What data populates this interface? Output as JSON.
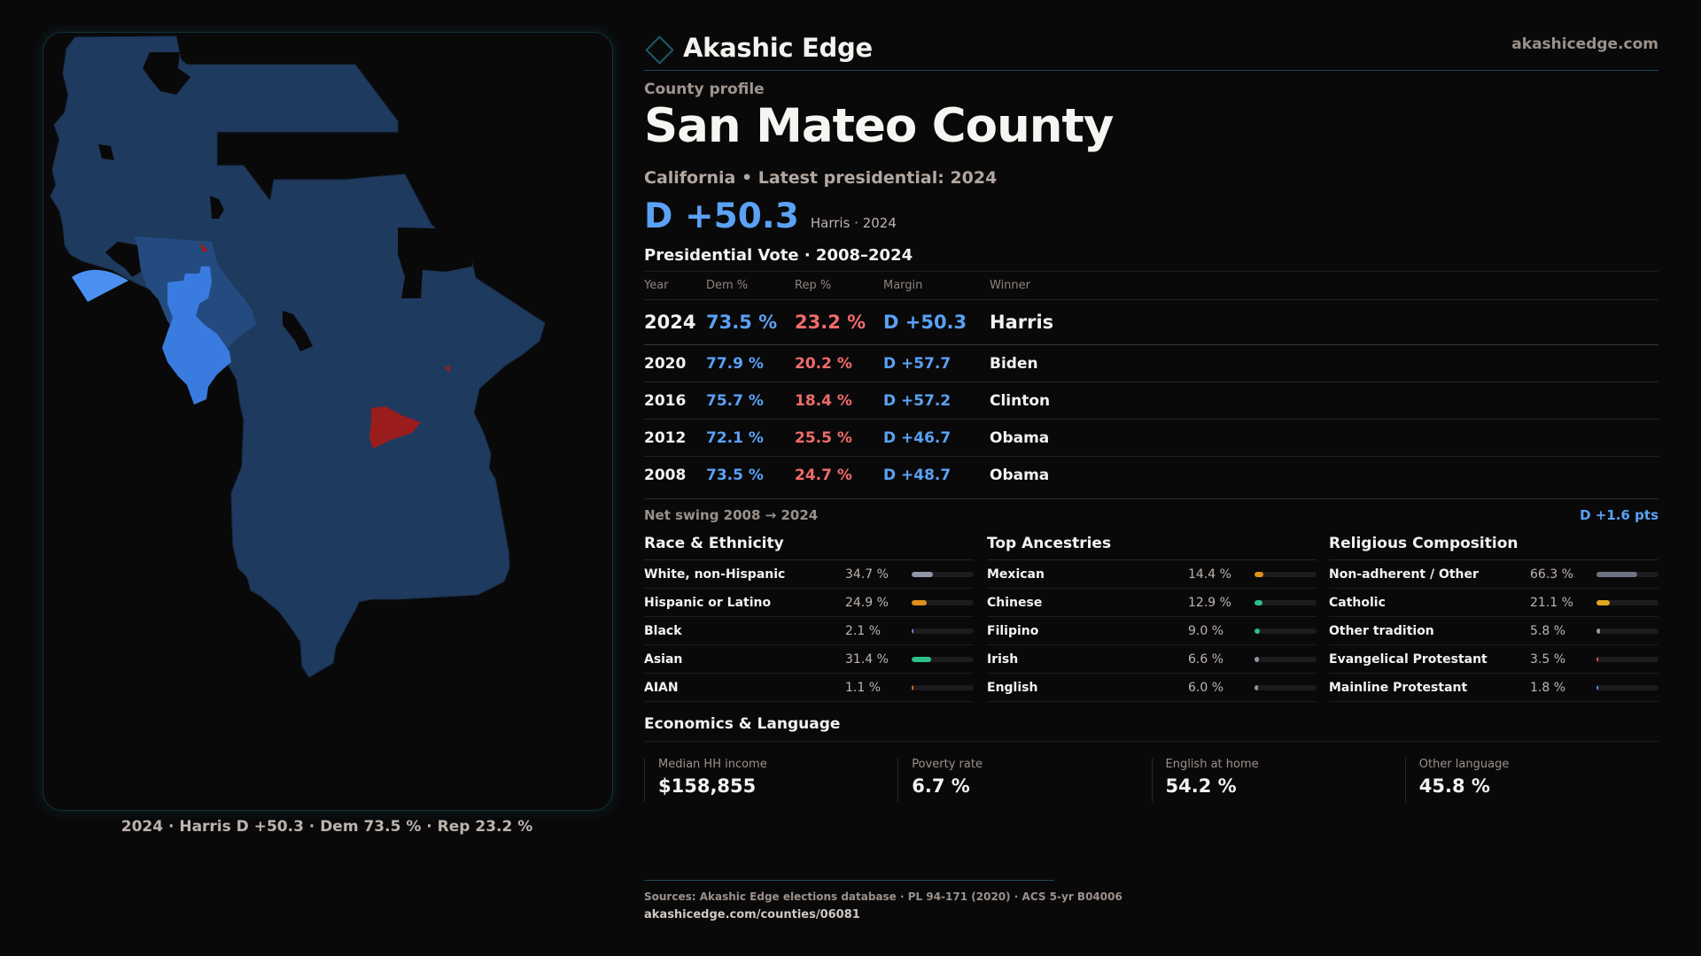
{
  "brand": {
    "name": "Akashic Edge",
    "site": "akashicedge.com",
    "logo_icon": "diamond-icon"
  },
  "profile": {
    "eyebrow": "County profile",
    "county": "San Mateo County",
    "subtitle": "California • Latest presidential: 2024",
    "headline_margin": "D +50.3",
    "headline_winner": "Harris · 2024"
  },
  "vote": {
    "title": "Presidential Vote · 2008–2024",
    "headers": {
      "year": "Year",
      "dem": "Dem %",
      "rep": "Rep %",
      "margin": "Margin",
      "winner": "Winner"
    },
    "rows": [
      {
        "year": "2024",
        "dem": "73.5 %",
        "rep": "23.2 %",
        "margin": "D +50.3",
        "winner": "Harris"
      },
      {
        "year": "2020",
        "dem": "77.9 %",
        "rep": "20.2 %",
        "margin": "D +57.7",
        "winner": "Biden"
      },
      {
        "year": "2016",
        "dem": "75.7 %",
        "rep": "18.4 %",
        "margin": "D +57.2",
        "winner": "Clinton"
      },
      {
        "year": "2012",
        "dem": "72.1 %",
        "rep": "25.5 %",
        "margin": "D +46.7",
        "winner": "Obama"
      },
      {
        "year": "2008",
        "dem": "73.5 %",
        "rep": "24.7 %",
        "margin": "D +48.7",
        "winner": "Obama"
      }
    ],
    "swing_label": "Net swing 2008 → 2024",
    "swing_value": "D +1.6 pts"
  },
  "demographics": [
    {
      "title": "Race & Ethnicity",
      "items": [
        {
          "label": "White, non-Hispanic",
          "value": "34.7 %",
          "pct": 34.7,
          "color": "#8e98a6"
        },
        {
          "label": "Hispanic or Latino",
          "value": "24.9 %",
          "pct": 24.9,
          "color": "#e0901a"
        },
        {
          "label": "Black",
          "value": "2.1 %",
          "pct": 2.1,
          "color": "#8a7ad6"
        },
        {
          "label": "Asian",
          "value": "31.4 %",
          "pct": 31.4,
          "color": "#2fbf8a"
        },
        {
          "label": "AIAN",
          "value": "1.1 %",
          "pct": 1.1,
          "color": "#d9782a"
        }
      ]
    },
    {
      "title": "Top Ancestries",
      "items": [
        {
          "label": "Mexican",
          "value": "14.4 %",
          "pct": 14.4,
          "color": "#e0901a"
        },
        {
          "label": "Chinese",
          "value": "12.9 %",
          "pct": 12.9,
          "color": "#2fbf8a"
        },
        {
          "label": "Filipino",
          "value": "9.0 %",
          "pct": 9.0,
          "color": "#2fbf8a"
        },
        {
          "label": "Irish",
          "value": "6.6 %",
          "pct": 6.6,
          "color": "#8e98a6"
        },
        {
          "label": "English",
          "value": "6.0 %",
          "pct": 6.0,
          "color": "#8e98a6"
        }
      ]
    },
    {
      "title": "Religious Composition",
      "items": [
        {
          "label": "Non-adherent / Other",
          "value": "66.3 %",
          "pct": 66.3,
          "color": "#6c7280"
        },
        {
          "label": "Catholic",
          "value": "21.1 %",
          "pct": 21.1,
          "color": "#e3a823"
        },
        {
          "label": "Other tradition",
          "value": "5.8 %",
          "pct": 5.8,
          "color": "#8e98a6"
        },
        {
          "label": "Evangelical Protestant",
          "value": "3.5 %",
          "pct": 3.5,
          "color": "#e05b5b"
        },
        {
          "label": "Mainline Protestant",
          "value": "1.8 %",
          "pct": 1.8,
          "color": "#4f8fe0"
        }
      ]
    }
  ],
  "economics": {
    "title": "Economics & Language",
    "stats": [
      {
        "label": "Median HH income",
        "value": "$158,855"
      },
      {
        "label": "Poverty rate",
        "value": "6.7 %"
      },
      {
        "label": "English at home",
        "value": "54.2 %"
      },
      {
        "label": "Other language",
        "value": "45.8 %"
      }
    ]
  },
  "map": {
    "caption": "2024 · Harris D +50.3 · Dem 73.5 % · Rep 23.2 %",
    "colors": {
      "strong_dem": "#1f3a5f",
      "lean_dem": "#244b80",
      "likely_dem": "#3a7be0",
      "safe_dem_light": "#4a90f0",
      "rep": "#9a1c1c",
      "no_data": "#0a090a"
    }
  },
  "footer": {
    "sources": "Sources: Akashic Edge elections database · PL 94-171 (2020) · ACS 5-yr B04006",
    "url": "akashicedge.com/counties/06081"
  }
}
